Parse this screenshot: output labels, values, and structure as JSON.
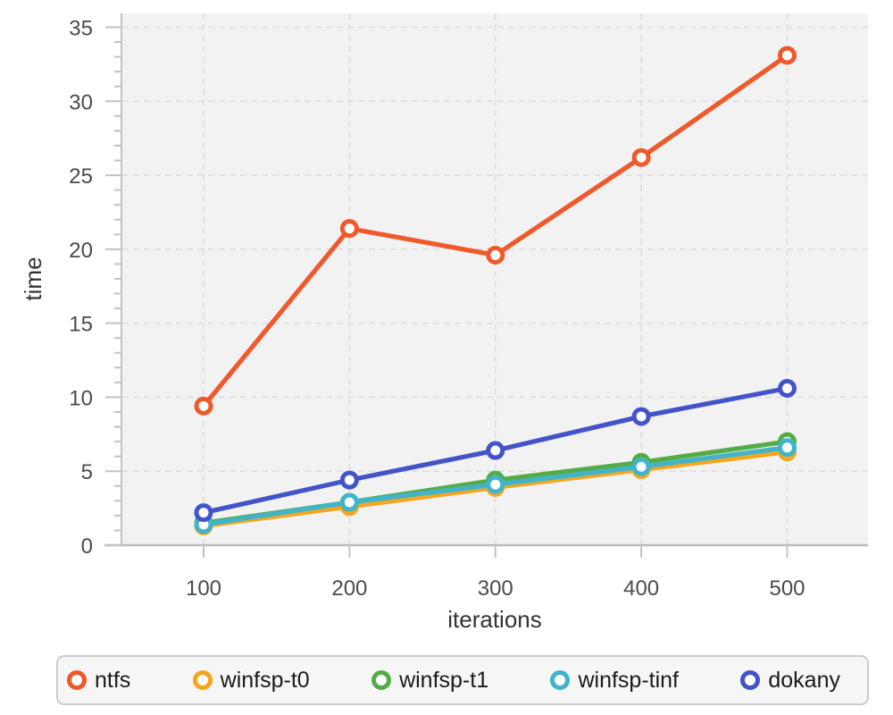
{
  "chart_data": {
    "type": "line",
    "title": "",
    "xlabel": "iterations",
    "ylabel": "time",
    "x": [
      100,
      200,
      300,
      400,
      500
    ],
    "xtick_labels": [
      "100",
      "200",
      "300",
      "400",
      "500"
    ],
    "yticks": [
      0,
      5,
      10,
      15,
      20,
      25,
      30,
      35
    ],
    "ytick_labels": [
      "0",
      "5",
      "10",
      "15",
      "20",
      "25",
      "30",
      "35"
    ],
    "ylim": [
      0,
      35
    ],
    "grid": "dashed",
    "legend_position": "bottom",
    "series": [
      {
        "name": "ntfs",
        "color": "#f0592b",
        "values": [
          9.4,
          21.4,
          19.6,
          26.2,
          33.1
        ]
      },
      {
        "name": "winfsp-t0",
        "color": "#f5a61d",
        "values": [
          1.3,
          2.6,
          3.9,
          5.1,
          6.3
        ]
      },
      {
        "name": "winfsp-t1",
        "color": "#55ac47",
        "values": [
          1.5,
          2.9,
          4.4,
          5.6,
          7.0
        ]
      },
      {
        "name": "winfsp-tinf",
        "color": "#3fb4cc",
        "values": [
          1.4,
          2.9,
          4.1,
          5.3,
          6.6
        ]
      },
      {
        "name": "dokany",
        "color": "#4353c9",
        "values": [
          2.2,
          4.4,
          6.4,
          8.7,
          10.6
        ]
      }
    ],
    "style": {
      "plot_bg": "#f2f2f2",
      "grid_color": "#dddddd",
      "axis_line_color": "#c3c3c3",
      "baseline_color": "#bdbdbd",
      "tick_color": "#c3c3c3",
      "tick_label_color": "#4b4b4b",
      "axis_title_color": "#333333",
      "marker_fill": "#ffffff"
    }
  }
}
